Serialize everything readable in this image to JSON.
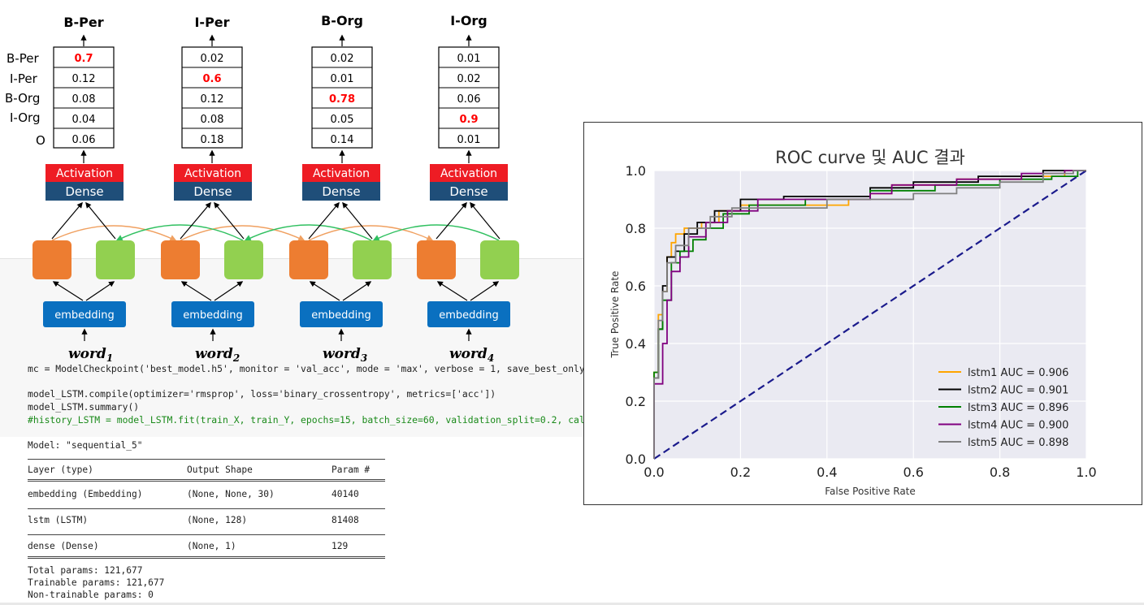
{
  "diagram": {
    "columns": [
      {
        "output": "B-Per",
        "probs": [
          "0.7",
          "0.12",
          "0.08",
          "0.04",
          "0.06"
        ],
        "highlight": 0,
        "word": "word",
        "sub": "1"
      },
      {
        "output": "I-Per",
        "probs": [
          "0.02",
          "0.6",
          "0.12",
          "0.08",
          "0.18"
        ],
        "highlight": 1,
        "word": "word",
        "sub": "2"
      },
      {
        "output": "B-Org",
        "probs": [
          "0.02",
          "0.01",
          "0.78",
          "0.05",
          "0.14"
        ],
        "highlight": 2,
        "word": "word",
        "sub": "3"
      },
      {
        "output": "I-Org",
        "probs": [
          "0.01",
          "0.02",
          "0.06",
          "0.9",
          "0.01"
        ],
        "highlight": 3,
        "word": "word",
        "sub": "4"
      }
    ],
    "row_labels": [
      "B-Per",
      "I-Per",
      "B-Org",
      "I-Org",
      "O"
    ],
    "activation_label": "Activation",
    "dense_label": "Dense",
    "embedding_label": "embedding",
    "colors": {
      "activation": "#ee1c24",
      "dense": "#1f4e79",
      "embedding": "#0a70c0",
      "forward_cell": "#ed7d31",
      "backward_cell": "#92d050",
      "forward_arrow": "#f0a060",
      "backward_arrow": "#30c060",
      "highlight_text": "#ff0000"
    }
  },
  "code": {
    "lines": [
      "mc = ModelCheckpoint('best_model.h5', monitor = 'val_acc', mode = 'max', verbose = 1, save_best_only",
      "",
      "model_LSTM.compile(optimizer='rmsprop', loss='binary_crossentropy', metrics=['acc'])",
      "model_LSTM.summary()",
      "#history_LSTM = model_LSTM.fit(train_X, train_Y, epochs=15, batch_size=60, validation_split=0.2, call"
    ]
  },
  "summary": {
    "model_line": "Model: \"sequential_5\"",
    "headers": [
      "Layer (type)",
      "Output Shape",
      "Param #"
    ],
    "rows": [
      [
        "embedding (Embedding)",
        "(None, None, 30)",
        "40140"
      ],
      [
        "lstm (LSTM)",
        "(None, 128)",
        "81408"
      ],
      [
        "dense (Dense)",
        "(None, 1)",
        "129"
      ]
    ],
    "totals": [
      "Total params: 121,677",
      "Trainable params: 121,677",
      "Non-trainable params: 0"
    ]
  },
  "chart_data": {
    "type": "line",
    "title": "ROC curve 및 AUC 결과",
    "xlabel": "False Positive Rate",
    "ylabel": "True Positive Rate",
    "xlim": [
      0,
      1
    ],
    "ylim": [
      0,
      1
    ],
    "xticks": [
      "0.0",
      "0.2",
      "0.4",
      "0.6",
      "0.8",
      "1.0"
    ],
    "yticks": [
      "0.0",
      "0.2",
      "0.4",
      "0.6",
      "0.8",
      "1.0"
    ],
    "grid": true,
    "legend_position": "lower-right",
    "background": "#eaeaf2",
    "diagonal": {
      "color": "#1a1a8c",
      "style": "dashed",
      "points": [
        [
          0,
          0
        ],
        [
          1,
          1
        ]
      ]
    },
    "series": [
      {
        "name": "lstm1 AUC = 0.906",
        "color": "#ffa500",
        "points": [
          [
            0,
            0
          ],
          [
            0,
            0.3
          ],
          [
            0.01,
            0.3
          ],
          [
            0.01,
            0.5
          ],
          [
            0.02,
            0.5
          ],
          [
            0.02,
            0.58
          ],
          [
            0.03,
            0.58
          ],
          [
            0.03,
            0.7
          ],
          [
            0.04,
            0.7
          ],
          [
            0.04,
            0.75
          ],
          [
            0.05,
            0.75
          ],
          [
            0.05,
            0.78
          ],
          [
            0.07,
            0.78
          ],
          [
            0.07,
            0.8
          ],
          [
            0.11,
            0.8
          ],
          [
            0.11,
            0.82
          ],
          [
            0.15,
            0.82
          ],
          [
            0.15,
            0.86
          ],
          [
            0.2,
            0.86
          ],
          [
            0.2,
            0.88
          ],
          [
            0.45,
            0.88
          ],
          [
            0.45,
            0.9
          ],
          [
            0.5,
            0.9
          ],
          [
            0.5,
            0.92
          ],
          [
            0.55,
            0.92
          ],
          [
            0.55,
            0.95
          ],
          [
            0.7,
            0.95
          ],
          [
            0.7,
            0.97
          ],
          [
            0.85,
            0.97
          ],
          [
            0.85,
            0.98
          ],
          [
            0.95,
            0.98
          ],
          [
            0.95,
            1
          ],
          [
            1,
            1
          ]
        ]
      },
      {
        "name": "lstm2 AUC = 0.901",
        "color": "#000000",
        "points": [
          [
            0,
            0
          ],
          [
            0,
            0.28
          ],
          [
            0.01,
            0.28
          ],
          [
            0.01,
            0.45
          ],
          [
            0.02,
            0.45
          ],
          [
            0.02,
            0.6
          ],
          [
            0.03,
            0.6
          ],
          [
            0.03,
            0.7
          ],
          [
            0.05,
            0.7
          ],
          [
            0.05,
            0.72
          ],
          [
            0.07,
            0.72
          ],
          [
            0.07,
            0.78
          ],
          [
            0.1,
            0.78
          ],
          [
            0.1,
            0.82
          ],
          [
            0.14,
            0.82
          ],
          [
            0.14,
            0.86
          ],
          [
            0.2,
            0.86
          ],
          [
            0.2,
            0.9
          ],
          [
            0.3,
            0.9
          ],
          [
            0.3,
            0.91
          ],
          [
            0.5,
            0.91
          ],
          [
            0.5,
            0.94
          ],
          [
            0.6,
            0.94
          ],
          [
            0.6,
            0.96
          ],
          [
            0.75,
            0.96
          ],
          [
            0.75,
            0.98
          ],
          [
            0.9,
            0.98
          ],
          [
            0.9,
            1
          ],
          [
            1,
            1
          ]
        ]
      },
      {
        "name": "lstm3 AUC = 0.896",
        "color": "#008000",
        "points": [
          [
            0,
            0
          ],
          [
            0,
            0.3
          ],
          [
            0.01,
            0.3
          ],
          [
            0.01,
            0.45
          ],
          [
            0.02,
            0.45
          ],
          [
            0.02,
            0.55
          ],
          [
            0.04,
            0.55
          ],
          [
            0.04,
            0.68
          ],
          [
            0.06,
            0.68
          ],
          [
            0.06,
            0.72
          ],
          [
            0.09,
            0.72
          ],
          [
            0.09,
            0.76
          ],
          [
            0.12,
            0.76
          ],
          [
            0.12,
            0.8
          ],
          [
            0.16,
            0.8
          ],
          [
            0.16,
            0.85
          ],
          [
            0.22,
            0.85
          ],
          [
            0.22,
            0.88
          ],
          [
            0.35,
            0.88
          ],
          [
            0.35,
            0.9
          ],
          [
            0.5,
            0.9
          ],
          [
            0.5,
            0.93
          ],
          [
            0.65,
            0.93
          ],
          [
            0.65,
            0.95
          ],
          [
            0.8,
            0.95
          ],
          [
            0.8,
            0.97
          ],
          [
            0.92,
            0.97
          ],
          [
            0.92,
            0.98
          ],
          [
            0.98,
            0.98
          ],
          [
            0.98,
            1
          ],
          [
            1,
            1
          ]
        ]
      },
      {
        "name": "lstm4 AUC = 0.900",
        "color": "#800080",
        "points": [
          [
            0,
            0
          ],
          [
            0,
            0.26
          ],
          [
            0.02,
            0.26
          ],
          [
            0.02,
            0.4
          ],
          [
            0.03,
            0.4
          ],
          [
            0.03,
            0.55
          ],
          [
            0.04,
            0.55
          ],
          [
            0.04,
            0.65
          ],
          [
            0.06,
            0.65
          ],
          [
            0.06,
            0.7
          ],
          [
            0.08,
            0.7
          ],
          [
            0.08,
            0.77
          ],
          [
            0.12,
            0.77
          ],
          [
            0.12,
            0.82
          ],
          [
            0.17,
            0.82
          ],
          [
            0.17,
            0.86
          ],
          [
            0.24,
            0.86
          ],
          [
            0.24,
            0.9
          ],
          [
            0.5,
            0.9
          ],
          [
            0.5,
            0.92
          ],
          [
            0.55,
            0.92
          ],
          [
            0.55,
            0.95
          ],
          [
            0.7,
            0.95
          ],
          [
            0.7,
            0.97
          ],
          [
            0.85,
            0.97
          ],
          [
            0.85,
            0.99
          ],
          [
            0.95,
            0.99
          ],
          [
            0.95,
            1
          ],
          [
            1,
            1
          ]
        ]
      },
      {
        "name": "lstm5 AUC = 0.898",
        "color": "#808080",
        "points": [
          [
            0,
            0
          ],
          [
            0,
            0.28
          ],
          [
            0.01,
            0.28
          ],
          [
            0.01,
            0.48
          ],
          [
            0.02,
            0.48
          ],
          [
            0.02,
            0.58
          ],
          [
            0.03,
            0.58
          ],
          [
            0.03,
            0.68
          ],
          [
            0.05,
            0.68
          ],
          [
            0.05,
            0.74
          ],
          [
            0.08,
            0.74
          ],
          [
            0.08,
            0.8
          ],
          [
            0.13,
            0.8
          ],
          [
            0.13,
            0.84
          ],
          [
            0.18,
            0.84
          ],
          [
            0.18,
            0.87
          ],
          [
            0.4,
            0.87
          ],
          [
            0.4,
            0.9
          ],
          [
            0.6,
            0.9
          ],
          [
            0.6,
            0.92
          ],
          [
            0.7,
            0.92
          ],
          [
            0.7,
            0.94
          ],
          [
            0.8,
            0.94
          ],
          [
            0.8,
            0.96
          ],
          [
            0.9,
            0.96
          ],
          [
            0.9,
            0.99
          ],
          [
            0.97,
            0.99
          ],
          [
            0.97,
            1
          ],
          [
            1,
            1
          ]
        ]
      }
    ]
  }
}
